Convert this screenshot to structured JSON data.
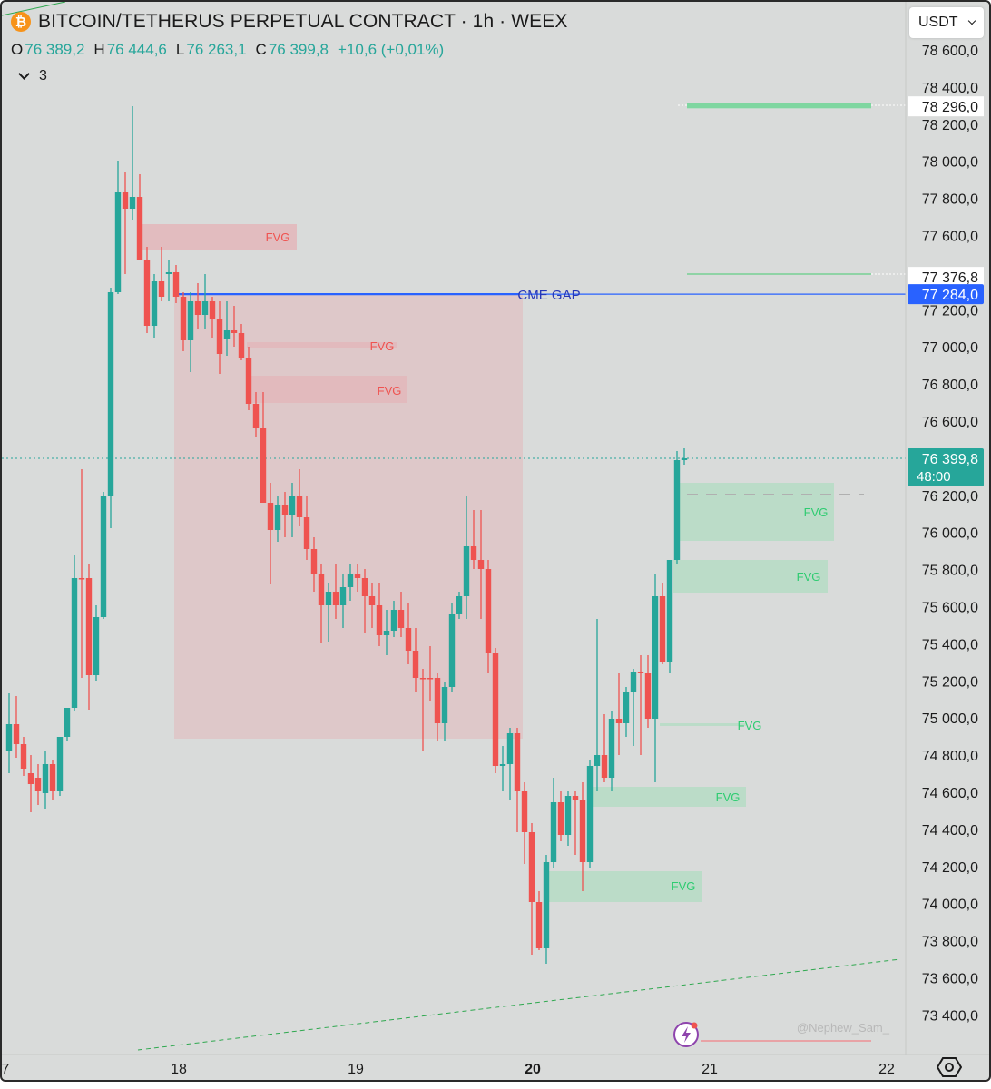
{
  "header": {
    "coin_icon": "₿",
    "title": "BITCOIN/TETHERUS PERPETUAL CONTRACT · 1h · WEEX",
    "ohlc": [
      {
        "label": "O",
        "value": "76 389,2"
      },
      {
        "label": "H",
        "value": "76 444,6"
      },
      {
        "label": "L",
        "value": "76 263,1"
      },
      {
        "label": "C",
        "value": "76 399,8"
      }
    ],
    "change": "+10,6 (+0,01%)",
    "indicator_count": "3"
  },
  "currency": {
    "selected": "USDT"
  },
  "price_axis": {
    "ticks": [
      "78 600,0",
      "78 400,0",
      "78 200,0",
      "78 000,0",
      "77 800,0",
      "77 600,0",
      "77 200,0",
      "77 000,0",
      "76 800,0",
      "76 600,0",
      "76 200,0",
      "76 000,0",
      "75 800,0",
      "75 600,0",
      "75 400,0",
      "75 200,0",
      "75 000,0",
      "74 800,0",
      "74 600,0",
      "74 400,0",
      "74 200,0",
      "74 000,0",
      "73 800,0",
      "73 600,0",
      "73 400,0"
    ],
    "tick_values": [
      78600,
      78400,
      78200,
      78000,
      77800,
      77600,
      77200,
      77000,
      76800,
      76600,
      76200,
      76000,
      75800,
      75600,
      75400,
      75200,
      75000,
      74800,
      74600,
      74400,
      74200,
      74000,
      73800,
      73600,
      73400
    ],
    "labels": [
      {
        "text": "78 296,0",
        "value": 78296
      },
      {
        "text": "77 376,8",
        "value": 77376.8
      },
      {
        "text": "77 284,0",
        "value": 77284
      }
    ],
    "current": {
      "price": "76 399,8",
      "countdown": "48:00",
      "value": 76399.8
    }
  },
  "time_axis": {
    "labels": [
      {
        "text": "7"
      },
      {
        "text": "18"
      },
      {
        "text": "19"
      },
      {
        "text": "20",
        "bold": true
      },
      {
        "text": "21"
      },
      {
        "text": "22"
      }
    ]
  },
  "annotations": {
    "cme_gap_label": "CME GAP",
    "cme_gap_price": 77284,
    "fvg_label": "FVG",
    "watermark": "@Nephew_Sam_"
  },
  "colors": {
    "up": "#26a69a",
    "down": "#ef5350",
    "bear_fvg": "#e2b8bb",
    "bull_fvg": "#b9dcc7",
    "cme_line": "#2962ff",
    "background": "#d9dbda"
  },
  "icons": {
    "settings": "gear-icon",
    "coin": "bitcoin-icon",
    "alert": "lightning-icon"
  }
}
